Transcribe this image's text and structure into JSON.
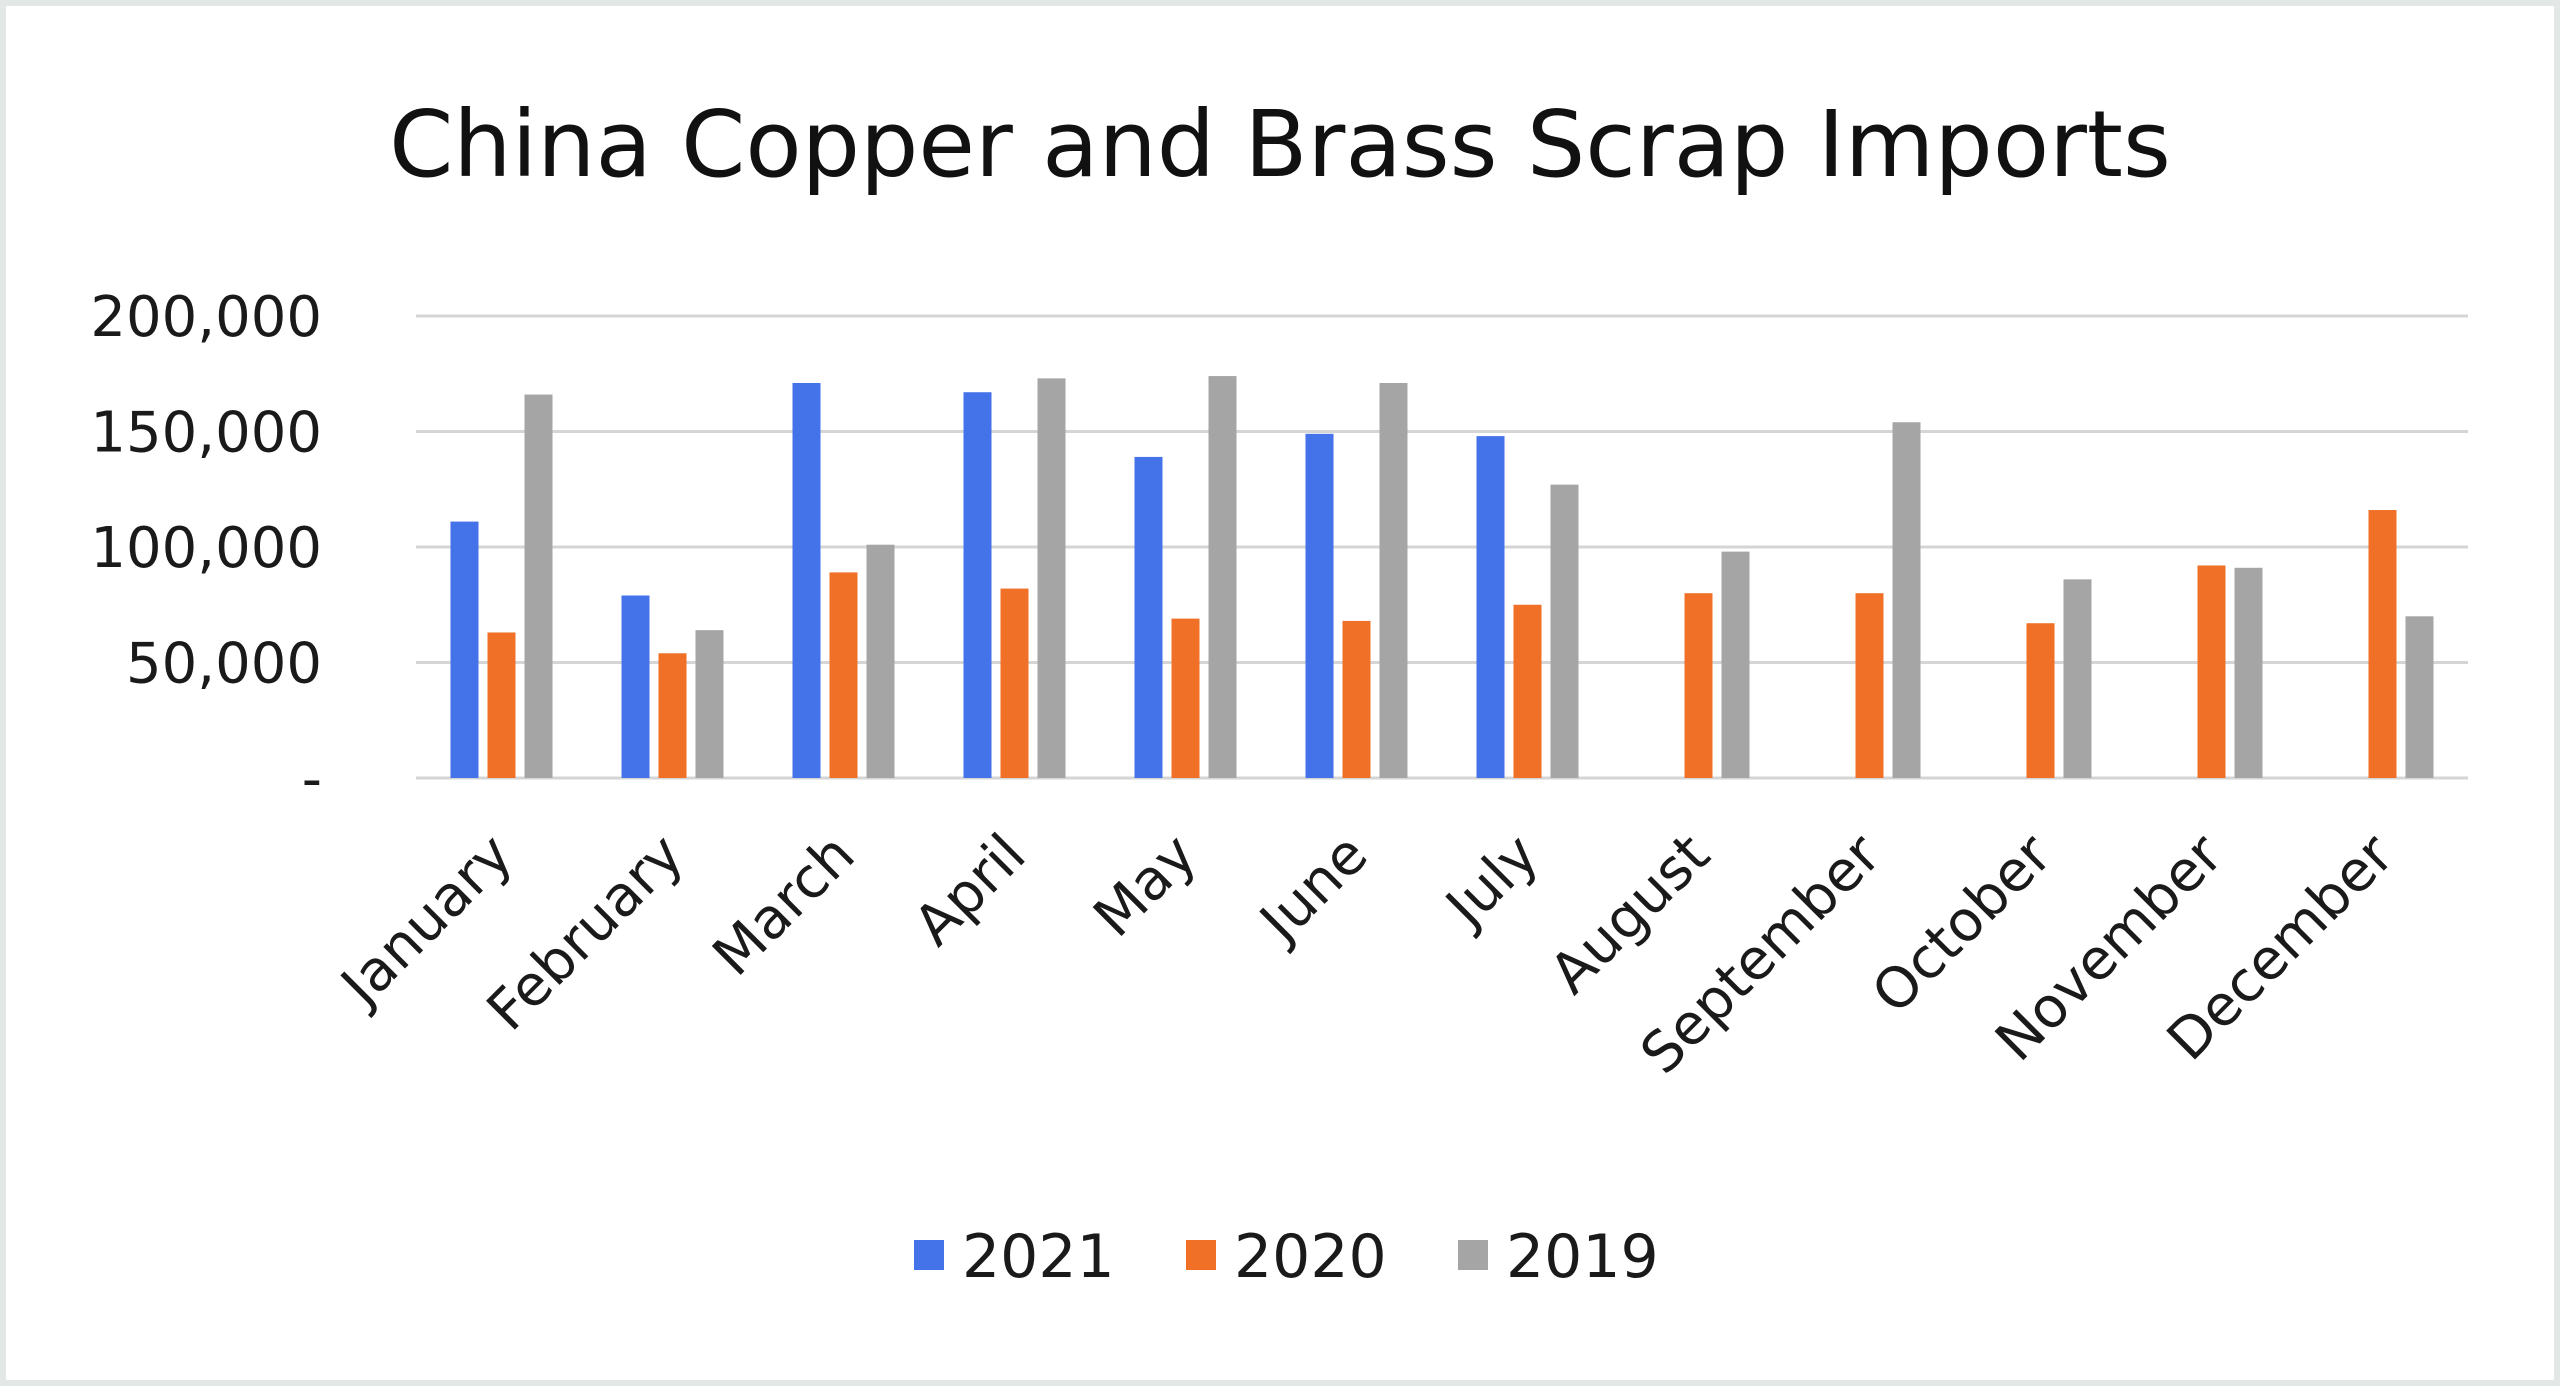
{
  "chart_data": {
    "type": "bar",
    "title": "China Copper and Brass Scrap Imports",
    "xlabel": "",
    "ylabel": "",
    "categories": [
      "January",
      "February",
      "March",
      "April",
      "May",
      "June",
      "July",
      "August",
      "September",
      "October",
      "November",
      "December"
    ],
    "series": [
      {
        "name": "2021",
        "color": "#4472e8",
        "values": [
          111000,
          79000,
          171000,
          167000,
          139000,
          149000,
          148000,
          null,
          null,
          null,
          null,
          null
        ]
      },
      {
        "name": "2020",
        "color": "#ef7026",
        "values": [
          63000,
          54000,
          89000,
          82000,
          69000,
          68000,
          75000,
          80000,
          80000,
          67000,
          92000,
          116000
        ]
      },
      {
        "name": "2019",
        "color": "#a5a5a5",
        "values": [
          166000,
          64000,
          101000,
          173000,
          174000,
          171000,
          127000,
          98000,
          154000,
          86000,
          91000,
          70000
        ]
      }
    ],
    "ylim": [
      0,
      200000
    ],
    "yticks": [
      0,
      50000,
      100000,
      150000,
      200000
    ],
    "ytick_labels": [
      "-",
      "50,000",
      "100,000",
      "150,000",
      "200,000"
    ],
    "grid": true,
    "legend_position": "bottom"
  }
}
